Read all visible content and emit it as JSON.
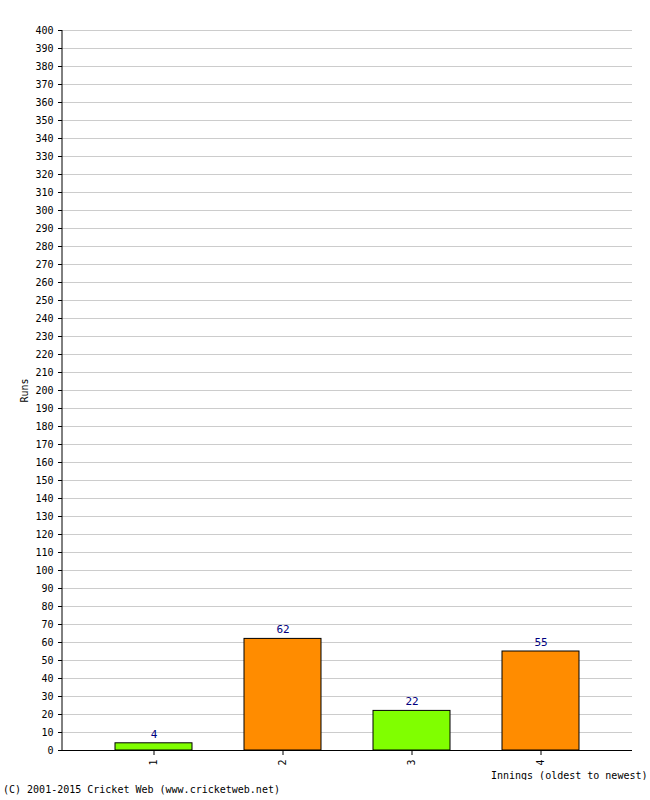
{
  "chart_data": {
    "type": "bar",
    "categories": [
      "1",
      "2",
      "3",
      "4"
    ],
    "values": [
      4,
      62,
      22,
      55
    ],
    "colors": [
      "#80ff00",
      "#ff8c00",
      "#80ff00",
      "#ff8c00"
    ],
    "xlabel": "Innings (oldest to newest)",
    "ylabel": "Runs",
    "caption": "(C) 2001-2015 Cricket Web (www.cricketweb.net)",
    "ylim": [
      0,
      400
    ],
    "yticks": [
      0,
      10,
      20,
      30,
      40,
      50,
      60,
      70,
      80,
      90,
      100,
      110,
      120,
      130,
      140,
      150,
      160,
      170,
      180,
      190,
      200,
      210,
      220,
      230,
      240,
      250,
      260,
      270,
      280,
      290,
      300,
      310,
      320,
      330,
      340,
      350,
      360,
      370,
      380,
      390,
      400
    ],
    "grid": true,
    "data_labels": true
  }
}
